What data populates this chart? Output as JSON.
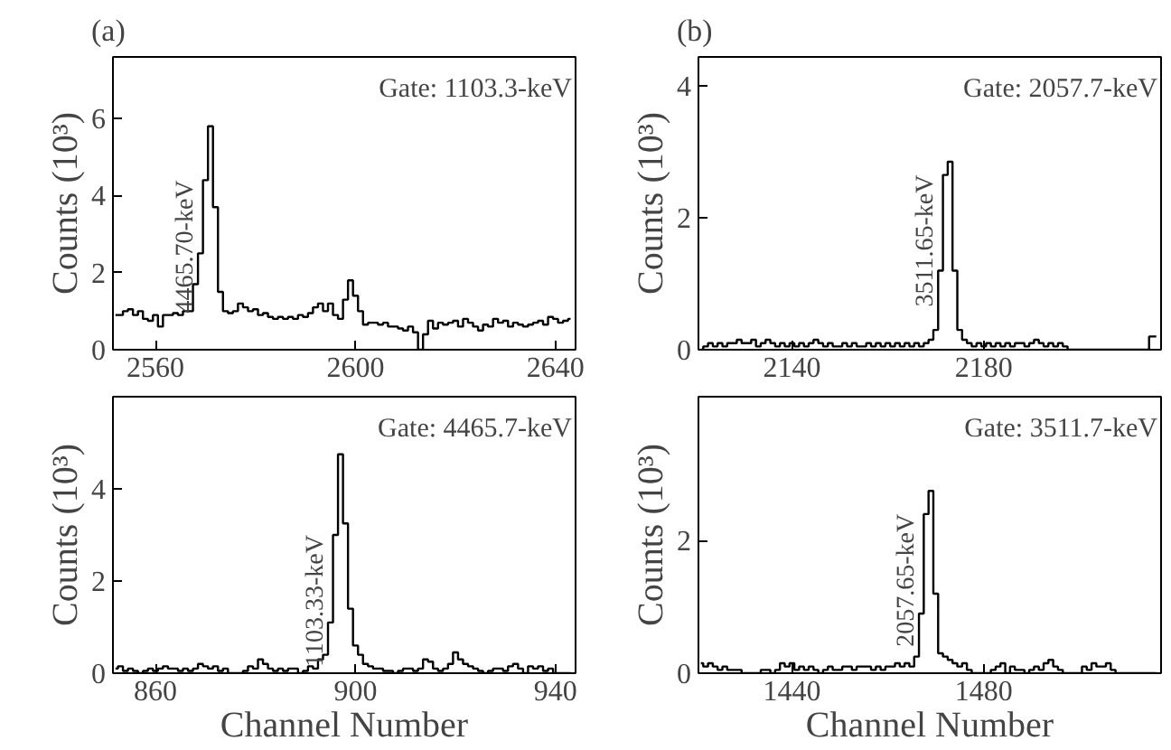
{
  "chart_data": [
    {
      "type": "step",
      "title": "(a)",
      "ylabel": "Counts (10³)",
      "color": "#000000",
      "grid": false,
      "xlim": [
        2551.5,
        2644
      ],
      "xticks": [
        2560,
        2600,
        2640
      ],
      "ylim": [
        0,
        7.6
      ],
      "yticks": [
        0,
        2,
        4,
        6
      ],
      "annotations": [
        "Gate: 1103.3-keV",
        {
          "text": "4465.70-keV",
          "x": 2570,
          "y": 4.4
        }
      ],
      "x": [
        2552,
        2553,
        2554,
        2555,
        2556,
        2557,
        2558,
        2559,
        2560,
        2561,
        2562,
        2563,
        2564,
        2565,
        2566,
        2567,
        2568,
        2569,
        2570,
        2571,
        2572,
        2573,
        2574,
        2575,
        2576,
        2577,
        2578,
        2579,
        2580,
        2581,
        2582,
        2583,
        2584,
        2585,
        2586,
        2587,
        2588,
        2589,
        2590,
        2591,
        2592,
        2593,
        2594,
        2595,
        2596,
        2597,
        2598,
        2599,
        2600,
        2601,
        2602,
        2603,
        2604,
        2605,
        2606,
        2607,
        2608,
        2609,
        2610,
        2611,
        2612,
        2613,
        2614,
        2615,
        2616,
        2617,
        2618,
        2619,
        2620,
        2621,
        2622,
        2623,
        2624,
        2625,
        2626,
        2627,
        2628,
        2629,
        2630,
        2631,
        2632,
        2633,
        2634,
        2635,
        2636,
        2637,
        2638,
        2639,
        2640,
        2641,
        2642,
        2643
      ],
      "values": [
        0.9,
        0.9,
        1.0,
        1.05,
        0.9,
        1.0,
        0.8,
        0.75,
        0.9,
        0.6,
        0.9,
        0.9,
        0.95,
        0.9,
        1.0,
        1.0,
        1.7,
        2.5,
        4.4,
        5.8,
        3.7,
        1.5,
        1.0,
        0.95,
        1.0,
        1.2,
        1.1,
        1.0,
        1.05,
        0.9,
        0.95,
        0.85,
        0.8,
        0.85,
        0.8,
        0.85,
        0.8,
        0.9,
        0.85,
        0.95,
        1.1,
        1.2,
        1.0,
        1.2,
        0.9,
        0.8,
        1.3,
        1.8,
        1.4,
        1.0,
        0.65,
        0.7,
        0.7,
        0.65,
        0.7,
        0.6,
        0.6,
        0.55,
        0.5,
        0.6,
        0.45,
        0.0,
        0.4,
        0.75,
        0.55,
        0.7,
        0.65,
        0.7,
        0.75,
        0.6,
        0.8,
        0.7,
        0.6,
        0.5,
        0.65,
        0.6,
        0.8,
        0.7,
        0.75,
        0.6,
        0.7,
        0.65,
        0.6,
        0.65,
        0.7,
        0.75,
        0.65,
        0.85,
        0.8,
        0.7,
        0.75,
        0.8
      ]
    },
    {
      "type": "step",
      "title": "(b)",
      "ylabel": "Counts (10³)",
      "color": "#000000",
      "grid": false,
      "xlim": [
        2120.5,
        2217
      ],
      "xticks": [
        2140,
        2180
      ],
      "ylim": [
        0,
        4.44
      ],
      "yticks": [
        0,
        2,
        4
      ],
      "annotations": [
        "Gate: 2057.7-keV",
        {
          "text": "3511.65-keV",
          "x": 2172,
          "y": 2.65
        }
      ],
      "x": [
        2121,
        2122,
        2123,
        2124,
        2125,
        2126,
        2127,
        2128,
        2129,
        2130,
        2131,
        2132,
        2133,
        2134,
        2135,
        2136,
        2137,
        2138,
        2139,
        2140,
        2141,
        2142,
        2143,
        2144,
        2145,
        2146,
        2147,
        2148,
        2149,
        2150,
        2151,
        2152,
        2153,
        2154,
        2155,
        2156,
        2157,
        2158,
        2159,
        2160,
        2161,
        2162,
        2163,
        2164,
        2165,
        2166,
        2167,
        2168,
        2169,
        2170,
        2171,
        2172,
        2173,
        2174,
        2175,
        2176,
        2177,
        2178,
        2179,
        2180,
        2181,
        2182,
        2183,
        2184,
        2185,
        2186,
        2187,
        2188,
        2189,
        2190,
        2191,
        2192,
        2193,
        2194,
        2195,
        2196,
        2197,
        2198,
        2199,
        2200,
        2201,
        2202,
        2203,
        2204,
        2205,
        2206,
        2207,
        2208,
        2209,
        2210,
        2211,
        2212,
        2213,
        2214,
        2215,
        2216
      ],
      "values": [
        0.0,
        0.05,
        0.1,
        0.05,
        0.1,
        0.05,
        0.1,
        0.1,
        0.15,
        0.1,
        0.1,
        0.15,
        0.05,
        0.1,
        0.15,
        0.1,
        0.05,
        0.1,
        0.05,
        0.1,
        0.05,
        0.1,
        0.05,
        0.1,
        0.15,
        0.1,
        0.05,
        0.1,
        0.05,
        0.05,
        0.1,
        0.05,
        0.1,
        0.05,
        0.05,
        0.1,
        0.05,
        0.1,
        0.05,
        0.1,
        0.05,
        0.1,
        0.05,
        0.1,
        0.05,
        0.1,
        0.05,
        0.1,
        0.15,
        0.3,
        1.2,
        2.65,
        2.85,
        1.2,
        0.3,
        0.15,
        0.1,
        0.05,
        0.1,
        0.05,
        0.1,
        0.05,
        0.1,
        0.05,
        0.1,
        0.05,
        0.1,
        0.1,
        0.05,
        0.1,
        0.15,
        0.1,
        0.05,
        0.1,
        0.05,
        0.1,
        0.05,
        0.0,
        0.0,
        0.0,
        0.0,
        0.0,
        0.0,
        0.0,
        0.0,
        0.0,
        0.0,
        0.0,
        0.0,
        0.0,
        0.0,
        0.0,
        0.0,
        0.0,
        0.2,
        0.2
      ]
    },
    {
      "type": "step",
      "xlabel": "Channel Number",
      "ylabel": "Counts (10³)",
      "color": "#000000",
      "grid": false,
      "xlim": [
        851.5,
        944
      ],
      "xticks": [
        860,
        900,
        940
      ],
      "ylim": [
        0,
        6
      ],
      "yticks": [
        0,
        2,
        4
      ],
      "annotations": [
        "Gate: 4465.7-keV",
        {
          "text": "1103.33-keV",
          "x": 896,
          "y": 3.0
        }
      ],
      "x": [
        852,
        853,
        854,
        855,
        856,
        857,
        858,
        859,
        860,
        861,
        862,
        863,
        864,
        865,
        866,
        867,
        868,
        869,
        870,
        871,
        872,
        873,
        874,
        875,
        876,
        877,
        878,
        879,
        880,
        881,
        882,
        883,
        884,
        885,
        886,
        887,
        888,
        889,
        890,
        891,
        892,
        893,
        894,
        895,
        896,
        897,
        898,
        899,
        900,
        901,
        902,
        903,
        904,
        905,
        906,
        907,
        908,
        909,
        910,
        911,
        912,
        913,
        914,
        915,
        916,
        917,
        918,
        919,
        920,
        921,
        922,
        923,
        924,
        925,
        926,
        927,
        928,
        929,
        930,
        931,
        932,
        933,
        934,
        935,
        936,
        937,
        938,
        939,
        940,
        941,
        942,
        943
      ],
      "values": [
        0.1,
        0.15,
        0.05,
        0.1,
        0.05,
        0.0,
        0.05,
        0.1,
        0.05,
        0.1,
        0.15,
        0.1,
        0.1,
        0.05,
        0.1,
        0.05,
        0.1,
        0.2,
        0.15,
        0.1,
        0.15,
        0.05,
        0.1,
        0.0,
        0.0,
        0.0,
        0.05,
        0.15,
        0.1,
        0.3,
        0.2,
        0.1,
        0.05,
        0.1,
        0.05,
        0.1,
        0.1,
        0.0,
        0.05,
        0.15,
        0.1,
        0.3,
        0.4,
        1.1,
        3.0,
        4.75,
        3.25,
        1.4,
        0.6,
        0.4,
        0.2,
        0.15,
        0.1,
        0.1,
        0.05,
        0.05,
        0.0,
        0.05,
        0.1,
        0.1,
        0.05,
        0.1,
        0.3,
        0.25,
        0.1,
        0.05,
        0.1,
        0.2,
        0.45,
        0.3,
        0.2,
        0.15,
        0.1,
        0.05,
        0.0,
        0.05,
        0.1,
        0.1,
        0.05,
        0.15,
        0.2,
        0.1,
        0.0,
        0.15,
        0.1,
        0.15,
        0.05,
        0.1,
        0.0,
        0.0,
        0.0,
        0.0
      ]
    },
    {
      "type": "step",
      "xlabel": "Channel Number",
      "ylabel": "Counts (10³)",
      "color": "#000000",
      "grid": false,
      "xlim": [
        1420.5,
        1517
      ],
      "xticks": [
        1440,
        1480
      ],
      "ylim": [
        0,
        4.17
      ],
      "yticks": [
        0,
        2
      ],
      "annotations": [
        "Gate: 3511.7-keV",
        {
          "text": "2057.65-keV",
          "x": 1468,
          "y": 2.4
        }
      ],
      "x": [
        1421,
        1422,
        1423,
        1424,
        1425,
        1426,
        1427,
        1428,
        1429,
        1430,
        1431,
        1432,
        1433,
        1434,
        1435,
        1436,
        1437,
        1438,
        1439,
        1440,
        1441,
        1442,
        1443,
        1444,
        1445,
        1446,
        1447,
        1448,
        1449,
        1450,
        1451,
        1452,
        1453,
        1454,
        1455,
        1456,
        1457,
        1458,
        1459,
        1460,
        1461,
        1462,
        1463,
        1464,
        1465,
        1466,
        1467,
        1468,
        1469,
        1470,
        1471,
        1472,
        1473,
        1474,
        1475,
        1476,
        1477,
        1478,
        1479,
        1480,
        1481,
        1482,
        1483,
        1484,
        1485,
        1486,
        1487,
        1488,
        1489,
        1490,
        1491,
        1492,
        1493,
        1494,
        1495,
        1496,
        1497,
        1498,
        1499,
        1500,
        1501,
        1502,
        1503,
        1504,
        1505,
        1506,
        1507,
        1508,
        1509,
        1510,
        1511,
        1512,
        1513,
        1514,
        1515,
        1516
      ],
      "values": [
        0.15,
        0.1,
        0.15,
        0.1,
        0.05,
        0.1,
        0.05,
        0.05,
        0.05,
        0.0,
        0.0,
        0.0,
        0.0,
        0.05,
        0.05,
        0.0,
        0.05,
        0.15,
        0.1,
        0.15,
        0.05,
        0.1,
        0.05,
        0.1,
        0.05,
        0.0,
        0.05,
        0.1,
        0.05,
        0.05,
        0.1,
        0.1,
        0.05,
        0.1,
        0.1,
        0.1,
        0.05,
        0.1,
        0.05,
        0.1,
        0.1,
        0.15,
        0.1,
        0.15,
        0.1,
        0.25,
        0.9,
        2.4,
        2.75,
        1.2,
        0.3,
        0.25,
        0.2,
        0.15,
        0.1,
        0.15,
        0.05,
        0.0,
        0.0,
        0.0,
        0.0,
        0.05,
        0.1,
        0.15,
        0.0,
        0.1,
        0.05,
        0.05,
        0.0,
        0.05,
        0.1,
        0.05,
        0.15,
        0.2,
        0.1,
        0.05,
        0.0,
        0.0,
        0.0,
        0.0,
        0.1,
        0.05,
        0.15,
        0.1,
        0.1,
        0.15,
        0.05,
        0.0,
        0.0,
        0.0,
        0.0,
        0.0,
        0.0,
        0.0,
        0.0,
        0.0
      ]
    }
  ]
}
